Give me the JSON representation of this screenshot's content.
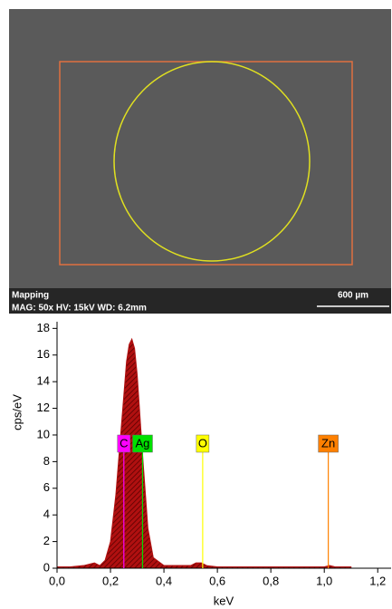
{
  "sem": {
    "label": "Mapping",
    "info": "MAG: 50x  HV: 15kV  WD: 6.2mm",
    "scale": "600 µm"
  },
  "chart_data": {
    "type": "area",
    "y_label": "cps/eV",
    "x_label": "keV",
    "color": "#b01010",
    "x": [
      0,
      0.05,
      0.1,
      0.12,
      0.14,
      0.16,
      0.18,
      0.2,
      0.22,
      0.24,
      0.26,
      0.27,
      0.28,
      0.29,
      0.3,
      0.32,
      0.34,
      0.36,
      0.4,
      0.5,
      0.52,
      0.54,
      0.56,
      0.6,
      0.8,
      1.0,
      1.02,
      1.04,
      1.1
    ],
    "values": [
      0.1,
      0.1,
      0.2,
      0.3,
      0.4,
      0.2,
      0.6,
      2.0,
      5.5,
      10.5,
      15.5,
      16.8,
      17.2,
      16.5,
      14.5,
      8.5,
      3.0,
      0.8,
      0.2,
      0.2,
      0.4,
      0.4,
      0.2,
      0.1,
      0.1,
      0.1,
      0.2,
      0.1,
      0.1
    ],
    "xlim": [
      0,
      1.25
    ],
    "ylim": [
      0,
      18.5
    ],
    "xticks": [
      {
        "value": 0,
        "label": "0,0"
      },
      {
        "value": 0.2,
        "label": "0,2"
      },
      {
        "value": 0.4,
        "label": "0,4"
      },
      {
        "value": 0.6,
        "label": "0,6"
      },
      {
        "value": 0.8,
        "label": "0,8"
      },
      {
        "value": 1.0,
        "label": "1,0"
      },
      {
        "value": 1.2,
        "label": "1,2"
      }
    ],
    "yticks": [
      0,
      2,
      4,
      6,
      8,
      10,
      12,
      14,
      16,
      18
    ],
    "markers": [
      {
        "label": "C",
        "value": 0.25,
        "color": "#ff00ff"
      },
      {
        "label": "Ag",
        "value": 0.32,
        "color": "#00e000"
      },
      {
        "label": "O",
        "value": 0.545,
        "color": "#ffff00"
      },
      {
        "label": "Zn",
        "value": 1.015,
        "color": "#ff8000"
      }
    ]
  }
}
